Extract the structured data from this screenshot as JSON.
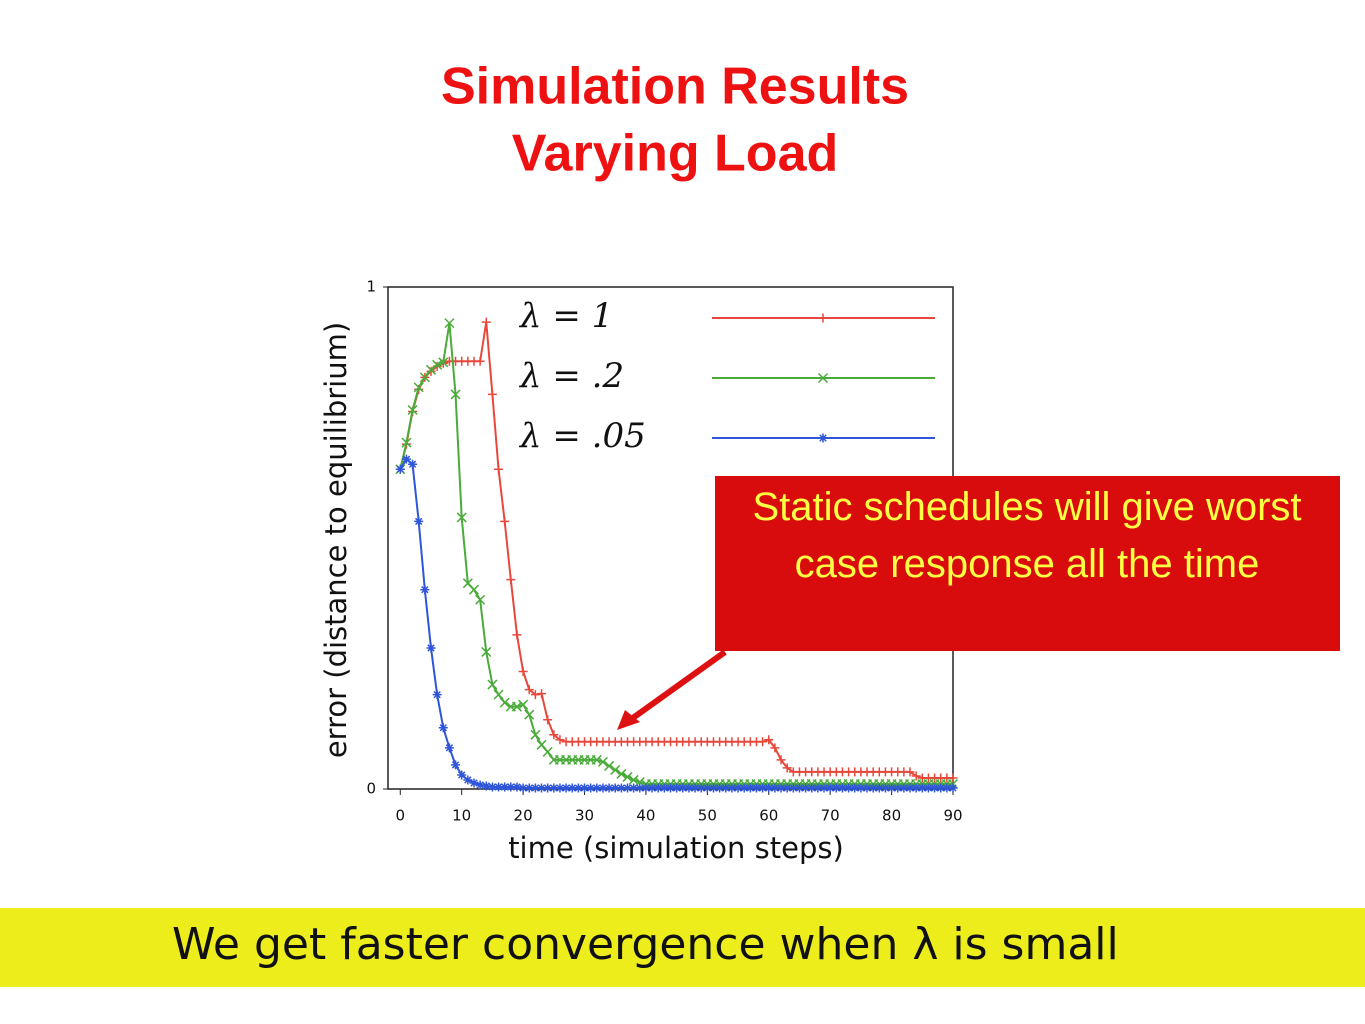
{
  "chart_data": {
    "type": "line",
    "title": "Simulation Results",
    "subtitle": "Varying Load",
    "x_label": "time (simulation steps)",
    "y_label": "error (distance to equilibrium)",
    "xlim": [
      -2,
      90
    ],
    "ylim": [
      0,
      1
    ],
    "xticks": [
      0,
      10,
      20,
      30,
      40,
      50,
      60,
      70,
      80,
      90
    ],
    "yticks": [
      0,
      1
    ],
    "legend": "top-right",
    "x": [
      0,
      1,
      2,
      3,
      4,
      5,
      6,
      7,
      8,
      9,
      10,
      11,
      12,
      13,
      14,
      15,
      16,
      17,
      18,
      19,
      20,
      21,
      22,
      23,
      24,
      25,
      26,
      27,
      28,
      29,
      30,
      31,
      32,
      33,
      34,
      35,
      36,
      37,
      38,
      39,
      40,
      41,
      42,
      43,
      44,
      45,
      46,
      47,
      48,
      49,
      50,
      51,
      52,
      53,
      54,
      55,
      56,
      57,
      58,
      59,
      60,
      61,
      62,
      63,
      64,
      65,
      66,
      67,
      68,
      69,
      70,
      71,
      72,
      73,
      74,
      75,
      76,
      77,
      78,
      79,
      80,
      81,
      82,
      83,
      84,
      85,
      86,
      87,
      88,
      89,
      90
    ],
    "series": [
      {
        "name": "λ = 1",
        "color": "#e8473b",
        "marker": "plus",
        "values": [
          0.637,
          0.687,
          0.752,
          0.796,
          0.82,
          0.832,
          0.842,
          0.848,
          0.852,
          0.852,
          0.852,
          0.852,
          0.852,
          0.852,
          0.93,
          0.786,
          0.637,
          0.533,
          0.417,
          0.307,
          0.234,
          0.198,
          0.188,
          0.19,
          0.138,
          0.108,
          0.098,
          0.094,
          0.094,
          0.094,
          0.094,
          0.094,
          0.094,
          0.094,
          0.094,
          0.094,
          0.094,
          0.094,
          0.094,
          0.094,
          0.094,
          0.094,
          0.094,
          0.094,
          0.094,
          0.094,
          0.094,
          0.094,
          0.094,
          0.094,
          0.094,
          0.094,
          0.094,
          0.094,
          0.094,
          0.094,
          0.094,
          0.094,
          0.094,
          0.094,
          0.098,
          0.082,
          0.058,
          0.042,
          0.034,
          0.034,
          0.034,
          0.034,
          0.034,
          0.034,
          0.034,
          0.034,
          0.034,
          0.034,
          0.034,
          0.034,
          0.034,
          0.034,
          0.034,
          0.034,
          0.034,
          0.034,
          0.034,
          0.034,
          0.026,
          0.022,
          0.022,
          0.022,
          0.022,
          0.022,
          0.022
        ]
      },
      {
        "name": "λ = .2",
        "color": "#4aab3a",
        "marker": "cross",
        "values": [
          0.637,
          0.69,
          0.755,
          0.8,
          0.82,
          0.835,
          0.845,
          0.85,
          0.928,
          0.786,
          0.541,
          0.41,
          0.397,
          0.377,
          0.273,
          0.208,
          0.188,
          0.172,
          0.164,
          0.164,
          0.168,
          0.148,
          0.108,
          0.088,
          0.074,
          0.058,
          0.058,
          0.058,
          0.058,
          0.058,
          0.058,
          0.058,
          0.058,
          0.054,
          0.046,
          0.038,
          0.03,
          0.024,
          0.018,
          0.014,
          0.01,
          0.01,
          0.01,
          0.01,
          0.01,
          0.01,
          0.01,
          0.01,
          0.01,
          0.01,
          0.01,
          0.01,
          0.01,
          0.01,
          0.01,
          0.01,
          0.01,
          0.01,
          0.01,
          0.01,
          0.01,
          0.01,
          0.01,
          0.01,
          0.01,
          0.01,
          0.01,
          0.01,
          0.01,
          0.01,
          0.01,
          0.01,
          0.01,
          0.01,
          0.01,
          0.01,
          0.01,
          0.01,
          0.01,
          0.01,
          0.01,
          0.01,
          0.01,
          0.01,
          0.01,
          0.01,
          0.01,
          0.01,
          0.01,
          0.01,
          0.01
        ]
      },
      {
        "name": "λ = .05",
        "color": "#2f55d8",
        "marker": "star",
        "values": [
          0.637,
          0.657,
          0.647,
          0.533,
          0.397,
          0.281,
          0.188,
          0.122,
          0.082,
          0.048,
          0.028,
          0.018,
          0.012,
          0.008,
          0.006,
          0.004,
          0.004,
          0.004,
          0.004,
          0.004,
          0.002,
          0.002,
          0.002,
          0.002,
          0.002,
          0.002,
          0.002,
          0.002,
          0.002,
          0.002,
          0.002,
          0.002,
          0.002,
          0.002,
          0.002,
          0.002,
          0.002,
          0.002,
          0.002,
          0.002,
          0.002,
          0.002,
          0.002,
          0.002,
          0.002,
          0.002,
          0.002,
          0.002,
          0.002,
          0.002,
          0.002,
          0.002,
          0.002,
          0.002,
          0.002,
          0.002,
          0.002,
          0.002,
          0.002,
          0.002,
          0.002,
          0.002,
          0.002,
          0.002,
          0.002,
          0.002,
          0.002,
          0.002,
          0.002,
          0.002,
          0.002,
          0.002,
          0.002,
          0.002,
          0.002,
          0.002,
          0.002,
          0.002,
          0.002,
          0.002,
          0.002,
          0.002,
          0.002,
          0.002,
          0.002,
          0.002,
          0.002,
          0.002,
          0.002,
          0.002,
          0.002
        ]
      }
    ],
    "annotation": "Static schedules will give worst case response all the time",
    "footer": "We get faster convergence when λ is small"
  }
}
